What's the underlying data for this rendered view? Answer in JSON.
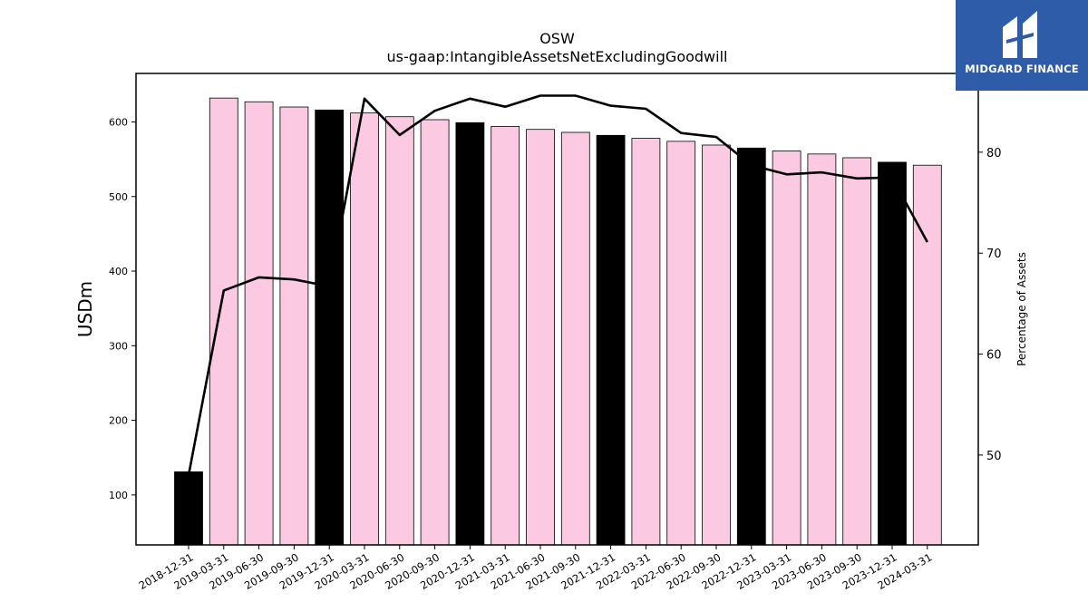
{
  "chart_data": {
    "type": "bar",
    "title": "OSW",
    "subtitle": "us-gaap:IntangibleAssetsNetExcludingGoodwill",
    "ylabel": "USDm",
    "y2label": "Percentage of Assets",
    "ylim": [
      33,
      665
    ],
    "y2lim": [
      41.1,
      87.8
    ],
    "yticks": [
      100,
      200,
      300,
      400,
      500,
      600
    ],
    "y2ticks": [
      50,
      60,
      70,
      80
    ],
    "grid": false,
    "categories": [
      "2018-12-31",
      "2019-03-31",
      "2019-06-30",
      "2019-09-30",
      "2019-12-31",
      "2020-03-31",
      "2020-06-30",
      "2020-09-30",
      "2020-12-31",
      "2021-03-31",
      "2021-06-30",
      "2021-09-30",
      "2021-12-31",
      "2022-03-31",
      "2022-06-30",
      "2022-09-30",
      "2022-12-31",
      "2023-03-31",
      "2023-06-30",
      "2023-09-30",
      "2023-12-31",
      "2024-03-31"
    ],
    "series": [
      {
        "kind": "bar",
        "axis": "left",
        "values": [
          131,
          632,
          627,
          620,
          616,
          612,
          607,
          603,
          599,
          594,
          590,
          586,
          582,
          578,
          574,
          569,
          565,
          561,
          557,
          552,
          546,
          542
        ],
        "colors": [
          "#000000",
          "#fcc9e3",
          "#fcc9e3",
          "#fcc9e3",
          "#000000",
          "#fcc9e3",
          "#fcc9e3",
          "#fcc9e3",
          "#000000",
          "#fcc9e3",
          "#fcc9e3",
          "#fcc9e3",
          "#000000",
          "#fcc9e3",
          "#fcc9e3",
          "#fcc9e3",
          "#000000",
          "#fcc9e3",
          "#fcc9e3",
          "#fcc9e3",
          "#000000",
          "#fcc9e3"
        ]
      },
      {
        "kind": "line",
        "axis": "right",
        "color": "#000000",
        "values": [
          48,
          66.3,
          67.6,
          67.4,
          66.7,
          85.3,
          81.7,
          84.1,
          85.3,
          84.5,
          85.6,
          85.6,
          84.6,
          84.3,
          81.9,
          81.5,
          78.7,
          77.8,
          78.0,
          77.4,
          77.5,
          71.1
        ]
      }
    ]
  },
  "logo": {
    "name": "MIDGARD FINANCE"
  }
}
